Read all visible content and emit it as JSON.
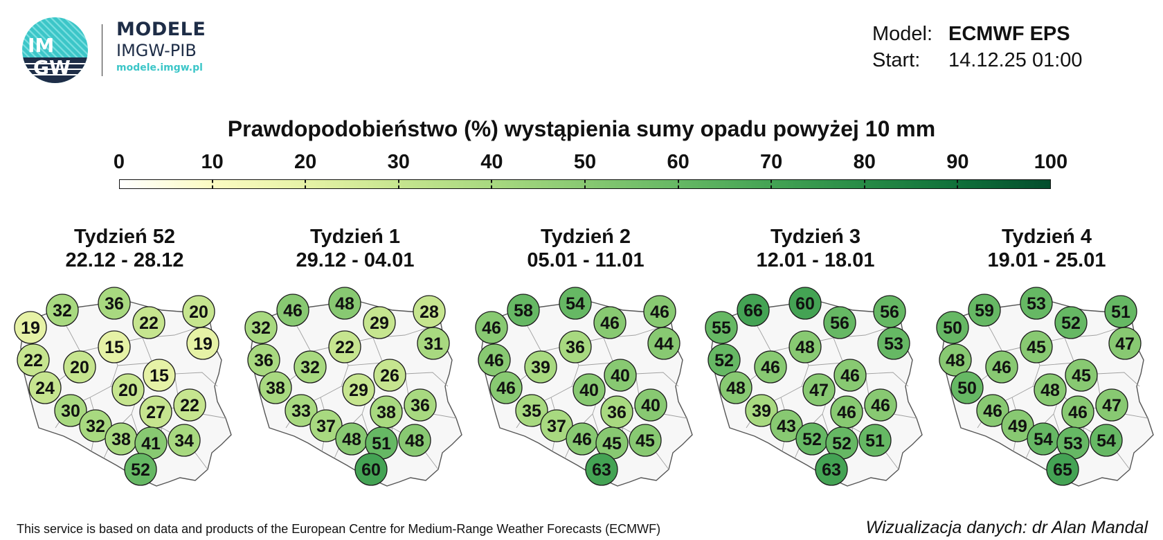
{
  "logo": {
    "mark_line1": "IM",
    "mark_line2": "GW",
    "line1": "MODELE",
    "line2": "IMGW-PIB",
    "line3": "modele.imgw.pl"
  },
  "model_info": {
    "model_label": "Model:",
    "model_value": "ECMWF EPS",
    "start_label": "Start:",
    "start_value": "14.12.25 01:00"
  },
  "title": "Prawdopodobieństwo (%) wystąpienia sumy opadu powyżej 10 mm",
  "colorbar": {
    "ticks": [
      "0",
      "10",
      "20",
      "30",
      "40",
      "50",
      "60",
      "70",
      "80",
      "90",
      "100"
    ],
    "colors": [
      "#ffffff",
      "#fbfbc2",
      "#e6f2a6",
      "#c6e58f",
      "#a8d980",
      "#88c972",
      "#66b864",
      "#44a354",
      "#278b46",
      "#10703a",
      "#034d2d"
    ]
  },
  "weeks": [
    {
      "week_label": "Tydzień 52",
      "dates": "22.12 - 28.12",
      "values": [
        32,
        36,
        19,
        22,
        20,
        15,
        22,
        20,
        19,
        24,
        20,
        15,
        30,
        27,
        22,
        32,
        38,
        41,
        34,
        52
      ]
    },
    {
      "week_label": "Tydzień 1",
      "dates": "29.12 - 04.01",
      "values": [
        46,
        48,
        32,
        29,
        28,
        22,
        36,
        32,
        31,
        38,
        29,
        26,
        33,
        38,
        36,
        37,
        48,
        51,
        48,
        60
      ]
    },
    {
      "week_label": "Tydzień 2",
      "dates": "05.01 - 11.01",
      "values": [
        58,
        54,
        46,
        46,
        46,
        36,
        46,
        39,
        44,
        46,
        40,
        40,
        35,
        36,
        40,
        37,
        46,
        45,
        45,
        63
      ]
    },
    {
      "week_label": "Tydzień 3",
      "dates": "12.01 - 18.01",
      "values": [
        66,
        60,
        55,
        56,
        56,
        48,
        52,
        46,
        53,
        48,
        47,
        46,
        39,
        46,
        46,
        43,
        52,
        52,
        51,
        63
      ]
    },
    {
      "week_label": "Tydzień 4",
      "dates": "19.01 - 25.01",
      "values": [
        59,
        53,
        50,
        52,
        51,
        45,
        48,
        46,
        47,
        50,
        48,
        45,
        46,
        46,
        47,
        49,
        54,
        53,
        54,
        65
      ]
    }
  ],
  "footer": {
    "left": "This service is based on data and products of the European Centre for Medium-Range Weather Forecasts (ECMWF)",
    "right": "Wizualizacja danych: dr Alan Mandal"
  }
}
